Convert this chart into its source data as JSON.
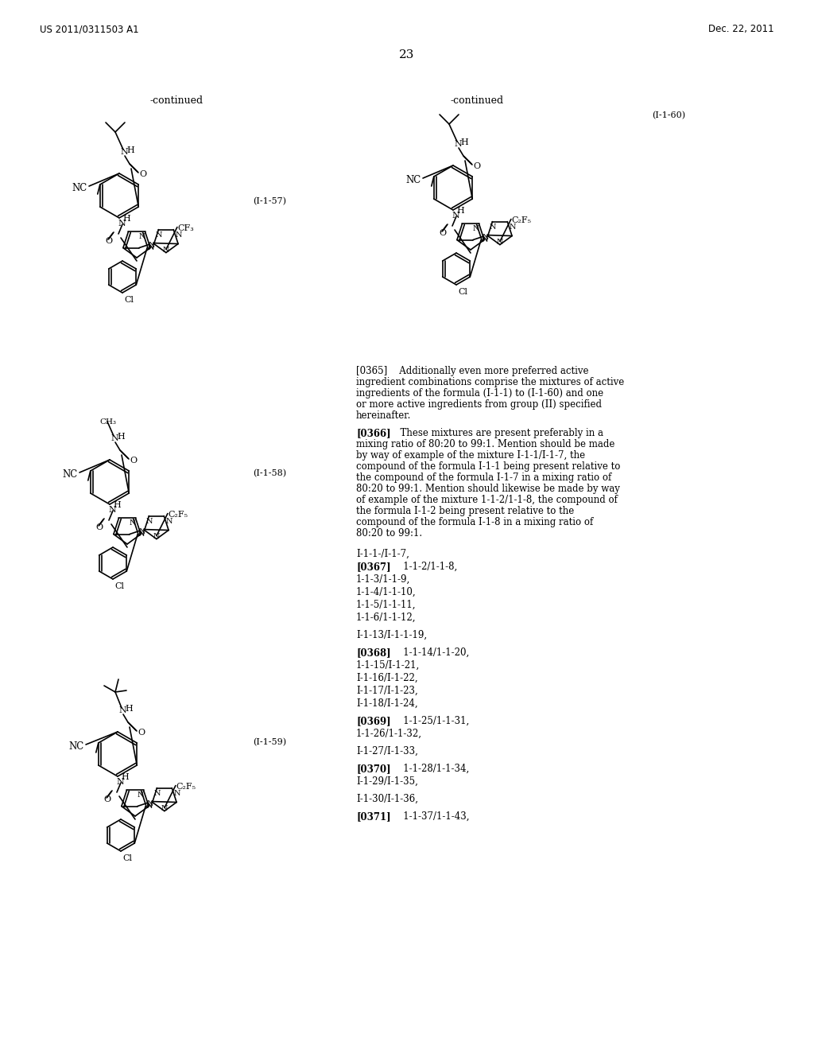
{
  "page_header_left": "US 2011/0311503 A1",
  "page_header_right": "Dec. 22, 2011",
  "page_number": "23",
  "continued_left": "-continued",
  "continued_right": "-continued",
  "label_57": "(I-1-57)",
  "label_58": "(I-1-58)",
  "label_59": "(I-1-59)",
  "label_60": "(I-1-60)",
  "bg_color": "#ffffff",
  "text_color": "#000000",
  "paragraph_0365": "[0365]    Additionally even more preferred active ingredient combinations comprise the mixtures of active ingredients of the formula (I-1-1) to (I-1-60) and one or more active ingredients from group (II) specified hereinafter.",
  "paragraph_0366_bold": "[0366]",
  "paragraph_0366_text": "   These mixtures are present preferably in a mixing ratio of 80:20 to 99:1. Mention should be made by way of example of the mixture I-1-1/I-1-7, the compound of the formula I-1-1 being present relative to the compound of the formula I-1-7 in a mixing ratio of 80:20 to 99:1. Mention should likewise be made by way of example of the mixture 1-1-2/1-1-8, the compound of the formula I-1-2 being present relative to the compound of the formula I-1-8 in a mixing ratio of 80:20 to 99:1.",
  "list_items": [
    {
      "text": "I-1-1-/I-1-7,",
      "bold": false,
      "indent": false
    },
    {
      "text": "[0367]",
      "bold": true,
      "indent": false,
      "suffix": "   1-1-2/1-1-8,"
    },
    {
      "text": "1-1-3/1-1-9,",
      "bold": false,
      "indent": false
    },
    {
      "text": "1-1-4/1-1-10,",
      "bold": false,
      "indent": false
    },
    {
      "text": "1-1-5/1-1-11,",
      "bold": false,
      "indent": false
    },
    {
      "text": "1-1-6/1-1-12,",
      "bold": false,
      "indent": false
    },
    {
      "text": "I-1-13/I-1-1-19,",
      "bold": false,
      "indent": false
    },
    {
      "text": "[0368]",
      "bold": true,
      "indent": false,
      "suffix": "   1-1-14/1-1-20,"
    },
    {
      "text": "1-1-15/I-1-21,",
      "bold": false,
      "indent": false
    },
    {
      "text": "I-1-16/I-1-22,",
      "bold": false,
      "indent": false
    },
    {
      "text": "I-1-17/I-1-23,",
      "bold": false,
      "indent": false
    },
    {
      "text": "I-1-18/I-1-24,",
      "bold": false,
      "indent": false
    },
    {
      "text": "[0369]",
      "bold": true,
      "indent": false,
      "suffix": "   1-1-25/1-1-31,"
    },
    {
      "text": "1-1-26/1-1-32,",
      "bold": false,
      "indent": false
    },
    {
      "text": "I-1-27/I-1-33,",
      "bold": false,
      "indent": false
    },
    {
      "text": "[0370]",
      "bold": true,
      "indent": false,
      "suffix": "   1-1-28/1-1-34,"
    },
    {
      "text": "I-1-29/I-1-35,",
      "bold": false,
      "indent": false
    },
    {
      "text": "I-1-30/I-1-36,",
      "bold": false,
      "indent": false
    },
    {
      "text": "[0371]",
      "bold": true,
      "indent": false,
      "suffix": "   1-1-37/1-1-43,"
    }
  ]
}
